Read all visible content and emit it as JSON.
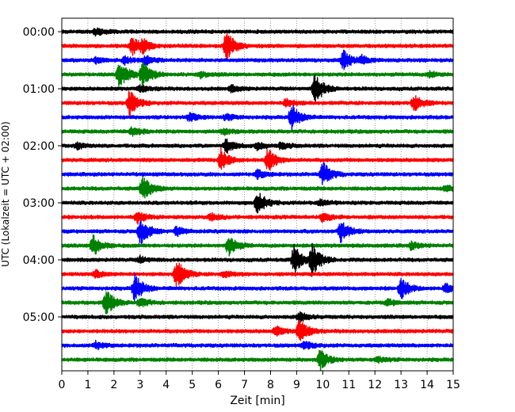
{
  "chart_data": {
    "type": "line",
    "title": "",
    "xlabel": "Zeit  [min]",
    "ylabel": "UTC (Lokalzeit = UTC + 02:00)",
    "xlim": [
      0,
      15
    ],
    "x_ticks": [
      "0",
      "1",
      "2",
      "3",
      "4",
      "5",
      "6",
      "7",
      "8",
      "9",
      "10",
      "11",
      "12",
      "13",
      "14",
      "15"
    ],
    "y_ticks": [
      "00:00",
      "01:00",
      "02:00",
      "03:00",
      "04:00",
      "05:00"
    ],
    "grid": "vertical dotted at each minute",
    "trace_interval_minutes": 15,
    "color_cycle": [
      "#000000",
      "#ff0000",
      "#0000ff",
      "#008000"
    ],
    "series": [
      {
        "start": "00:00",
        "color": "#000000",
        "events": [
          {
            "t": 1.3,
            "amp": 0.5
          }
        ]
      },
      {
        "start": "00:15",
        "color": "#ff0000",
        "events": [
          {
            "t": 2.7,
            "amp": 1.2
          },
          {
            "t": 3.1,
            "amp": 0.7
          },
          {
            "t": 6.3,
            "amp": 2.0
          }
        ]
      },
      {
        "start": "00:30",
        "color": "#0000ff",
        "events": [
          {
            "t": 1.3,
            "amp": 0.4
          },
          {
            "t": 2.4,
            "amp": 0.5
          },
          {
            "t": 3.2,
            "amp": 0.6
          },
          {
            "t": 10.8,
            "amp": 1.4
          },
          {
            "t": 11.5,
            "amp": 0.5
          }
        ]
      },
      {
        "start": "00:45",
        "color": "#008000",
        "events": [
          {
            "t": 2.2,
            "amp": 2.0
          },
          {
            "t": 3.1,
            "amp": 1.8
          },
          {
            "t": 5.3,
            "amp": 0.4
          },
          {
            "t": 14.1,
            "amp": 0.4
          }
        ]
      },
      {
        "start": "01:00",
        "color": "#000000",
        "events": [
          {
            "t": 3.0,
            "amp": 0.4
          },
          {
            "t": 6.5,
            "amp": 0.4
          },
          {
            "t": 9.7,
            "amp": 2.2
          }
        ]
      },
      {
        "start": "01:15",
        "color": "#ff0000",
        "events": [
          {
            "t": 2.6,
            "amp": 1.8
          },
          {
            "t": 8.6,
            "amp": 0.6
          },
          {
            "t": 13.5,
            "amp": 1.2
          }
        ]
      },
      {
        "start": "01:30",
        "color": "#0000ff",
        "events": [
          {
            "t": 4.9,
            "amp": 0.6
          },
          {
            "t": 8.8,
            "amp": 1.8
          },
          {
            "t": 6.3,
            "amp": 0.4
          }
        ]
      },
      {
        "start": "01:45",
        "color": "#008000",
        "events": [
          {
            "t": 2.7,
            "amp": 0.6
          },
          {
            "t": 6.2,
            "amp": 0.4
          }
        ]
      },
      {
        "start": "02:00",
        "color": "#000000",
        "events": [
          {
            "t": 0.6,
            "amp": 0.4
          },
          {
            "t": 6.3,
            "amp": 0.9
          },
          {
            "t": 7.5,
            "amp": 0.5
          },
          {
            "t": 8.4,
            "amp": 0.4
          }
        ]
      },
      {
        "start": "02:15",
        "color": "#ff0000",
        "events": [
          {
            "t": 6.1,
            "amp": 1.5
          },
          {
            "t": 7.9,
            "amp": 1.6
          }
        ]
      },
      {
        "start": "02:30",
        "color": "#0000ff",
        "events": [
          {
            "t": 7.5,
            "amp": 0.6
          },
          {
            "t": 10.0,
            "amp": 1.6
          }
        ]
      },
      {
        "start": "02:45",
        "color": "#008000",
        "events": [
          {
            "t": 3.1,
            "amp": 1.8
          },
          {
            "t": 14.7,
            "amp": 0.4
          }
        ]
      },
      {
        "start": "03:00",
        "color": "#000000",
        "events": [
          {
            "t": 7.5,
            "amp": 1.6
          },
          {
            "t": 9.9,
            "amp": 0.4
          }
        ]
      },
      {
        "start": "03:15",
        "color": "#ff0000",
        "events": [
          {
            "t": 2.9,
            "amp": 0.8
          },
          {
            "t": 5.7,
            "amp": 0.5
          },
          {
            "t": 10.0,
            "amp": 0.6
          }
        ]
      },
      {
        "start": "03:30",
        "color": "#0000ff",
        "events": [
          {
            "t": 3.0,
            "amp": 2.0
          },
          {
            "t": 4.4,
            "amp": 0.6
          },
          {
            "t": 10.7,
            "amp": 1.6
          }
        ]
      },
      {
        "start": "03:45",
        "color": "#008000",
        "events": [
          {
            "t": 1.2,
            "amp": 1.4
          },
          {
            "t": 6.4,
            "amp": 1.4
          },
          {
            "t": 13.4,
            "amp": 0.5
          }
        ]
      },
      {
        "start": "04:00",
        "color": "#000000",
        "events": [
          {
            "t": 3.0,
            "amp": 0.4
          },
          {
            "t": 8.9,
            "amp": 2.0
          },
          {
            "t": 9.6,
            "amp": 2.2
          }
        ]
      },
      {
        "start": "04:15",
        "color": "#ff0000",
        "events": [
          {
            "t": 1.3,
            "amp": 0.5
          },
          {
            "t": 4.4,
            "amp": 2.0
          },
          {
            "t": 6.2,
            "amp": 0.4
          }
        ]
      },
      {
        "start": "04:30",
        "color": "#0000ff",
        "events": [
          {
            "t": 2.8,
            "amp": 2.0
          },
          {
            "t": 13.0,
            "amp": 1.4
          },
          {
            "t": 14.7,
            "amp": 0.6
          }
        ]
      },
      {
        "start": "04:45",
        "color": "#008000",
        "events": [
          {
            "t": 1.7,
            "amp": 1.8
          },
          {
            "t": 3.0,
            "amp": 0.6
          },
          {
            "t": 12.5,
            "amp": 0.4
          }
        ]
      },
      {
        "start": "05:00",
        "color": "#000000",
        "events": [
          {
            "t": 9.1,
            "amp": 0.7
          }
        ]
      },
      {
        "start": "05:15",
        "color": "#ff0000",
        "events": [
          {
            "t": 8.2,
            "amp": 0.6
          },
          {
            "t": 9.1,
            "amp": 1.6
          }
        ]
      },
      {
        "start": "05:30",
        "color": "#0000ff",
        "events": [
          {
            "t": 1.3,
            "amp": 0.5
          },
          {
            "t": 9.3,
            "amp": 0.6
          }
        ]
      },
      {
        "start": "05:45",
        "color": "#008000",
        "events": [
          {
            "t": 9.9,
            "amp": 1.4
          },
          {
            "t": 12.1,
            "amp": 0.4
          }
        ]
      }
    ]
  }
}
